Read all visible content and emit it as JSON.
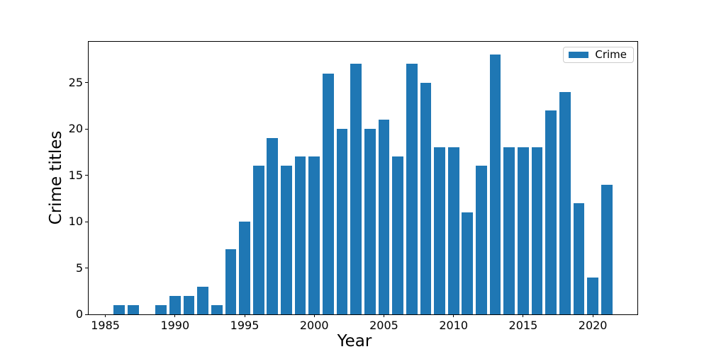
{
  "chart_data": {
    "type": "bar",
    "title": "",
    "xlabel": "Year",
    "ylabel": "Crime titles",
    "legend": {
      "label": "Crime",
      "position": "upper right"
    },
    "bar_color": "#1f77b4",
    "bar_width_years": 0.8,
    "x": [
      1986,
      1987,
      1989,
      1990,
      1991,
      1992,
      1993,
      1994,
      1995,
      1996,
      1997,
      1998,
      1999,
      2000,
      2001,
      2002,
      2003,
      2004,
      2005,
      2006,
      2007,
      2008,
      2009,
      2010,
      2011,
      2012,
      2013,
      2014,
      2015,
      2016,
      2017,
      2018,
      2019,
      2020,
      2021
    ],
    "values": [
      1,
      1,
      1,
      2,
      2,
      3,
      1,
      7,
      10,
      16,
      19,
      16,
      17,
      17,
      26,
      20,
      27,
      20,
      21,
      17,
      27,
      25,
      18,
      18,
      11,
      16,
      28,
      18,
      18,
      18,
      22,
      24,
      12,
      4,
      14
    ],
    "xlim": [
      1983.8,
      2023.2
    ],
    "ylim": [
      0,
      29.4
    ],
    "xticks": [
      1985,
      1990,
      1995,
      2000,
      2005,
      2010,
      2015,
      2020
    ],
    "yticks": [
      0,
      5,
      10,
      15,
      20,
      25
    ],
    "grid": false
  }
}
